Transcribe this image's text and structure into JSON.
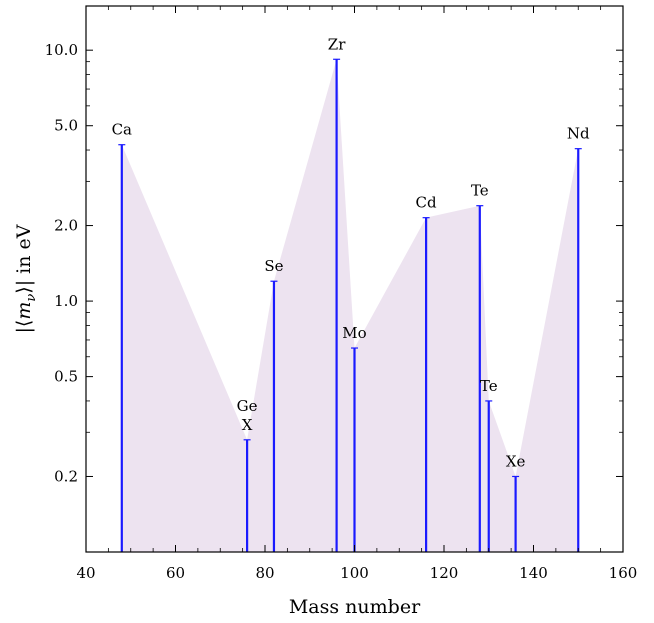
{
  "chart_data": {
    "type": "bar",
    "title": "",
    "xlabel": "Mass number",
    "ylabel": "|⟨m_ν⟩| in eV",
    "xlim": [
      40,
      160
    ],
    "ylim": [
      0.1,
      15.0
    ],
    "yscale": "log",
    "x_ticks": [
      40,
      60,
      80,
      100,
      120,
      140,
      160
    ],
    "x_tick_labels": [
      "40",
      "60",
      "80",
      "100",
      "120",
      "140",
      "160"
    ],
    "y_ticks": [
      0.2,
      0.5,
      1.0,
      2.0,
      5.0,
      10.0
    ],
    "y_tick_labels": [
      "0.2",
      "0.5",
      "1.0",
      "2.0",
      "5.0",
      "10.0"
    ],
    "grid": false,
    "bar_color": "#1a1aff",
    "fill_color": "#ede3f0",
    "points": [
      {
        "label": "Ca",
        "x": 48,
        "y": 4.2
      },
      {
        "label": "Ge\nX",
        "x": 76,
        "y": 0.28
      },
      {
        "label": "Se",
        "x": 82,
        "y": 1.2
      },
      {
        "label": "Zr",
        "x": 96,
        "y": 9.2
      },
      {
        "label": "Mo",
        "x": 100,
        "y": 0.65
      },
      {
        "label": "Cd",
        "x": 116,
        "y": 2.15
      },
      {
        "label": "Te",
        "x": 128,
        "y": 2.4
      },
      {
        "label": "Te",
        "x": 130,
        "y": 0.4
      },
      {
        "label": "Xe",
        "x": 136,
        "y": 0.2
      },
      {
        "label": "Nd",
        "x": 150,
        "y": 4.05
      }
    ]
  }
}
